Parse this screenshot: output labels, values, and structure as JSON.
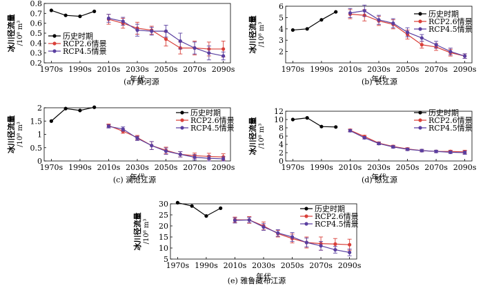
{
  "common": {
    "ylabel": "冰川径流量",
    "yunit": "/10⁸ m³",
    "xlabel": "年代",
    "x_ticks": [
      "1970s",
      "1990s",
      "2010s",
      "2030s",
      "2050s",
      "2070s",
      "2090s"
    ],
    "legend": [
      "历史时期",
      "RCP2.6情景",
      "RCP4.5情景"
    ],
    "colors": {
      "history": "#000000",
      "rcp26": "#d9403a",
      "rcp45": "#5a3fa0"
    }
  },
  "chart_data": [
    {
      "type": "line",
      "caption": "(a) 黄河源",
      "ylim": [
        0.2,
        0.8
      ],
      "yticks": [
        0.2,
        0.3,
        0.4,
        0.5,
        0.6,
        0.7,
        0.8
      ],
      "legend_position": "lower-left",
      "series": [
        {
          "name": "历史时期",
          "x": [
            1970,
            1980,
            1990,
            2000
          ],
          "y": [
            0.73,
            0.68,
            0.67,
            0.72
          ]
        },
        {
          "name": "RCP2.6情景",
          "x": [
            2010,
            2020,
            2030,
            2040,
            2050,
            2060,
            2070,
            2080,
            2090
          ],
          "y": [
            0.64,
            0.6,
            0.55,
            0.53,
            0.44,
            0.35,
            0.35,
            0.34,
            0.34
          ],
          "err": [
            0.05,
            0.05,
            0.06,
            0.04,
            0.07,
            0.06,
            0.07,
            0.07,
            0.08
          ]
        },
        {
          "name": "RCP4.5情景",
          "x": [
            2010,
            2020,
            2030,
            2040,
            2050,
            2060,
            2070,
            2080,
            2090
          ],
          "y": [
            0.65,
            0.62,
            0.53,
            0.52,
            0.52,
            0.42,
            0.35,
            0.3,
            0.27
          ],
          "err": [
            0.04,
            0.04,
            0.06,
            0.04,
            0.06,
            0.08,
            0.06,
            0.07,
            0.04
          ]
        }
      ]
    },
    {
      "type": "line",
      "caption": "(b) 长江源",
      "ylim": [
        1,
        6
      ],
      "yticks": [
        2,
        3,
        4,
        5,
        6
      ],
      "legend_position": "upper-right",
      "series": [
        {
          "name": "历史时期",
          "x": [
            1970,
            1980,
            1990,
            2000
          ],
          "y": [
            3.9,
            4.0,
            4.8,
            5.5
          ]
        },
        {
          "name": "RCP2.6情景",
          "x": [
            2010,
            2020,
            2030,
            2040,
            2050,
            2060,
            2070,
            2080,
            2090
          ],
          "y": [
            5.3,
            5.2,
            4.7,
            4.4,
            3.5,
            2.6,
            2.4,
            1.9,
            1.6
          ],
          "err": [
            0.4,
            0.5,
            0.4,
            0.4,
            0.4,
            0.3,
            0.3,
            0.3,
            0.2
          ]
        },
        {
          "name": "RCP4.5情景",
          "x": [
            2010,
            2020,
            2030,
            2040,
            2050,
            2060,
            2070,
            2080,
            2090
          ],
          "y": [
            5.4,
            5.6,
            4.8,
            4.5,
            3.7,
            3.2,
            2.6,
            2.0,
            1.6
          ],
          "err": [
            0.4,
            0.5,
            0.4,
            0.4,
            0.4,
            0.3,
            0.3,
            0.3,
            0.2
          ]
        }
      ]
    },
    {
      "type": "line",
      "caption": "(c) 澜沧江源",
      "ylim": [
        0,
        2.0
      ],
      "yticks": [
        0,
        0.5,
        1.0,
        1.5,
        2.0
      ],
      "legend_position": "upper-right",
      "series": [
        {
          "name": "历史时期",
          "x": [
            1970,
            1980,
            1990,
            2000
          ],
          "y": [
            1.5,
            1.97,
            1.9,
            2.02
          ]
        },
        {
          "name": "RCP2.6情景",
          "x": [
            2010,
            2020,
            2030,
            2040,
            2050,
            2060,
            2070,
            2080,
            2090
          ],
          "y": [
            1.33,
            1.12,
            0.88,
            0.58,
            0.4,
            0.25,
            0.2,
            0.17,
            0.15
          ],
          "err": [
            0.06,
            0.08,
            0.08,
            0.15,
            0.12,
            0.1,
            0.1,
            0.12,
            0.12
          ]
        },
        {
          "name": "RCP4.5情景",
          "x": [
            2010,
            2020,
            2030,
            2040,
            2050,
            2060,
            2070,
            2080,
            2090
          ],
          "y": [
            1.3,
            1.2,
            0.85,
            0.58,
            0.37,
            0.25,
            0.14,
            0.1,
            0.08
          ],
          "err": [
            0.06,
            0.08,
            0.08,
            0.15,
            0.12,
            0.1,
            0.1,
            0.1,
            0.08
          ]
        }
      ]
    },
    {
      "type": "line",
      "caption": "(d) 怒江源",
      "ylim": [
        0,
        12
      ],
      "yticks": [
        0,
        2,
        4,
        6,
        8,
        10,
        12
      ],
      "legend_position": "upper-right",
      "series": [
        {
          "name": "历史时期",
          "x": [
            1970,
            1980,
            1990,
            2000
          ],
          "y": [
            10.0,
            10.4,
            8.3,
            8.2
          ]
        },
        {
          "name": "RCP2.6情景",
          "x": [
            2010,
            2020,
            2030,
            2040,
            2050,
            2060,
            2070,
            2080,
            2090
          ],
          "y": [
            7.4,
            5.9,
            4.3,
            3.5,
            2.9,
            2.5,
            2.3,
            2.3,
            2.2
          ],
          "err": [
            0.3,
            0.3,
            0.3,
            0.3,
            0.3,
            0.3,
            0.3,
            0.3,
            0.4
          ]
        },
        {
          "name": "RCP4.5情景",
          "x": [
            2010,
            2020,
            2030,
            2040,
            2050,
            2060,
            2070,
            2080,
            2090
          ],
          "y": [
            7.3,
            5.6,
            4.2,
            3.4,
            2.8,
            2.5,
            2.3,
            2.1,
            2.0
          ],
          "err": [
            0.3,
            0.3,
            0.3,
            0.3,
            0.3,
            0.3,
            0.3,
            0.3,
            0.4
          ]
        }
      ]
    },
    {
      "type": "line",
      "caption": "(e) 雅鲁藏布江源",
      "ylim": [
        5,
        30
      ],
      "yticks": [
        5,
        10,
        15,
        20,
        25,
        30
      ],
      "legend_position": "upper-right",
      "series": [
        {
          "name": "历史时期",
          "x": [
            1970,
            1980,
            1990,
            2000
          ],
          "y": [
            30.5,
            29.0,
            24.5,
            28.0
          ]
        },
        {
          "name": "RCP2.6情景",
          "x": [
            2010,
            2020,
            2030,
            2040,
            2050,
            2060,
            2070,
            2080,
            2090
          ],
          "y": [
            22.8,
            22.7,
            20.0,
            16.5,
            14.3,
            12.5,
            12.0,
            11.8,
            11.5
          ],
          "err": [
            1.2,
            1.5,
            1.8,
            1.5,
            2.0,
            2.5,
            3.0,
            2.5,
            2.5
          ]
        },
        {
          "name": "RCP4.5情景",
          "x": [
            2010,
            2020,
            2030,
            2040,
            2050,
            2060,
            2070,
            2080,
            2090
          ],
          "y": [
            22.5,
            22.7,
            19.5,
            16.8,
            15.0,
            12.5,
            11.0,
            9.2,
            8.0
          ],
          "err": [
            1.2,
            1.2,
            1.5,
            1.5,
            2.0,
            2.0,
            2.0,
            1.5,
            1.5
          ]
        }
      ]
    }
  ]
}
